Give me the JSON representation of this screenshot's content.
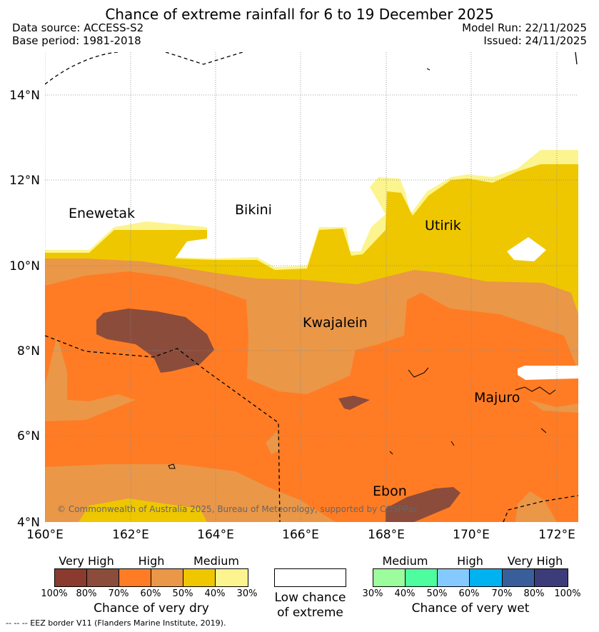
{
  "title": "Chance of extreme rainfall for 6 to 19 December 2025",
  "meta": {
    "data_source": "Data source: ACCESS-S2",
    "base_period": "Base period: 1981-2018",
    "model_run": "Model Run: 22/11/2025",
    "issued": "Issued: 24/11/2025"
  },
  "map": {
    "lat_labels": [
      "14°N",
      "12°N",
      "10°N",
      "8°N",
      "6°N",
      "4°N"
    ],
    "lon_labels": [
      "160°E",
      "162°E",
      "164°E",
      "166°E",
      "168°E",
      "170°E",
      "172°E"
    ],
    "places": {
      "enewetak": "Enewetak",
      "bikini": "Bikini",
      "utirik": "Utirik",
      "kwajalein": "Kwajalein",
      "majuro": "Majuro",
      "ebon": "Ebon"
    },
    "copyright": "© Commonwealth of Australia 2025, Bureau of Meteorology, supported by COSPPac"
  },
  "colors": {
    "dry_100_80": "#8b3a2f",
    "dry_80_70": "#8b4c3b",
    "dry_70_60": "#ff7c24",
    "dry_60_50": "#ea9748",
    "dry_50_40": "#eec700",
    "dry_40_30": "#fcf48e",
    "wet_30_40": "#9bfd9b",
    "wet_40_50": "#4dfd9e",
    "wet_50_60": "#85caff",
    "wet_60_70": "#00b2f0",
    "wet_70_80": "#395f9b",
    "wet_80_100": "#3d3c7a"
  },
  "legend": {
    "dry_categories": [
      "Very High",
      "High",
      "Medium"
    ],
    "dry_ticks": [
      "100%",
      "80%",
      "70%",
      "60%",
      "50%",
      "40%",
      "30%"
    ],
    "dry_caption": "Chance of very dry",
    "low_chance_line1": "Low chance",
    "low_chance_line2": "of extreme",
    "wet_categories": [
      "Medium",
      "High",
      "Very High"
    ],
    "wet_ticks": [
      "30%",
      "40%",
      "50%",
      "60%",
      "70%",
      "80%",
      "100%"
    ],
    "wet_caption": "Chance of very wet"
  },
  "footnote": "-- -- -- EEZ border V11 (Flanders Marine Institute, 2019)."
}
